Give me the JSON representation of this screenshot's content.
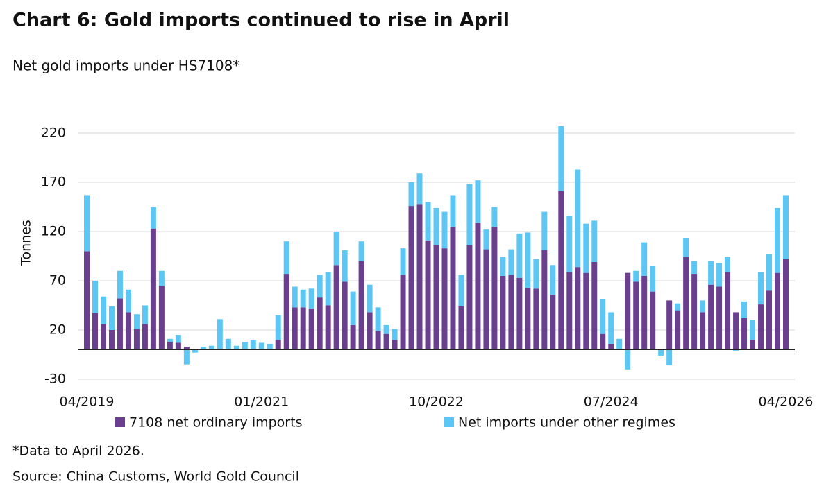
{
  "chart_data": {
    "type": "stacked_bar",
    "title": "Chart 6: Gold imports continued to rise in April",
    "subtitle": "Net gold imports under HS7108*",
    "y_label": "Tonnes",
    "footnote": "*Data to April 2026.",
    "source": "Source: China Customs, World Gold Council",
    "categories": [
      "04/2019",
      null,
      null,
      null,
      null,
      null,
      null,
      null,
      null,
      null,
      null,
      null,
      null,
      null,
      null,
      null,
      null,
      null,
      null,
      null,
      null,
      "01/2021",
      null,
      null,
      null,
      null,
      null,
      null,
      null,
      null,
      null,
      null,
      null,
      null,
      null,
      null,
      null,
      null,
      null,
      null,
      null,
      null,
      "10/2022",
      null,
      null,
      null,
      null,
      null,
      null,
      null,
      null,
      null,
      null,
      null,
      null,
      null,
      null,
      null,
      null,
      null,
      null,
      null,
      null,
      "07/2024",
      null,
      null,
      null,
      null,
      null,
      null,
      null,
      null,
      null,
      null,
      null,
      null,
      null,
      null,
      null,
      null,
      null,
      null,
      null,
      null,
      "04/2026"
    ],
    "series": [
      {
        "name": "7108 net ordinary imports",
        "color": "#6b3f8f",
        "values": [
          100,
          37,
          26,
          20,
          52,
          38,
          21,
          26,
          123,
          65,
          8,
          7,
          3,
          0,
          0,
          0,
          1,
          0,
          0,
          0,
          1,
          0,
          0,
          10,
          77,
          43,
          43,
          42,
          53,
          45,
          86,
          69,
          25,
          90,
          38,
          19,
          16,
          10,
          76,
          146,
          148,
          111,
          106,
          103,
          125,
          44,
          106,
          129,
          102,
          125,
          75,
          76,
          73,
          63,
          62,
          101,
          56,
          161,
          79,
          84,
          78,
          89,
          16,
          6,
          1,
          78,
          69,
          75,
          59,
          0,
          50,
          40,
          94,
          77,
          38,
          66,
          64,
          79,
          38,
          32,
          10,
          46,
          60,
          78,
          92
        ]
      },
      {
        "name": "Net imports under other regimes",
        "color": "#5cc6f4",
        "values": [
          57,
          33,
          28,
          24,
          28,
          23,
          15,
          19,
          22,
          15,
          3,
          8,
          -15,
          -3,
          3,
          4,
          30,
          11,
          4,
          8,
          9,
          7,
          6,
          25,
          33,
          21,
          18,
          20,
          23,
          34,
          34,
          32,
          34,
          20,
          28,
          24,
          9,
          11,
          27,
          24,
          31,
          39,
          38,
          37,
          32,
          32,
          62,
          43,
          20,
          20,
          19,
          26,
          45,
          56,
          30,
          39,
          30,
          66,
          57,
          99,
          50,
          42,
          35,
          32,
          10,
          -20,
          11,
          34,
          26,
          -6,
          -16,
          7,
          19,
          13,
          12,
          24,
          24,
          15,
          -1,
          17,
          20,
          33,
          37,
          66,
          65
        ]
      }
    ],
    "ylim": [
      -30,
      230
    ],
    "yticks": [
      -30,
      20,
      70,
      120,
      170,
      220
    ],
    "grid": true
  }
}
